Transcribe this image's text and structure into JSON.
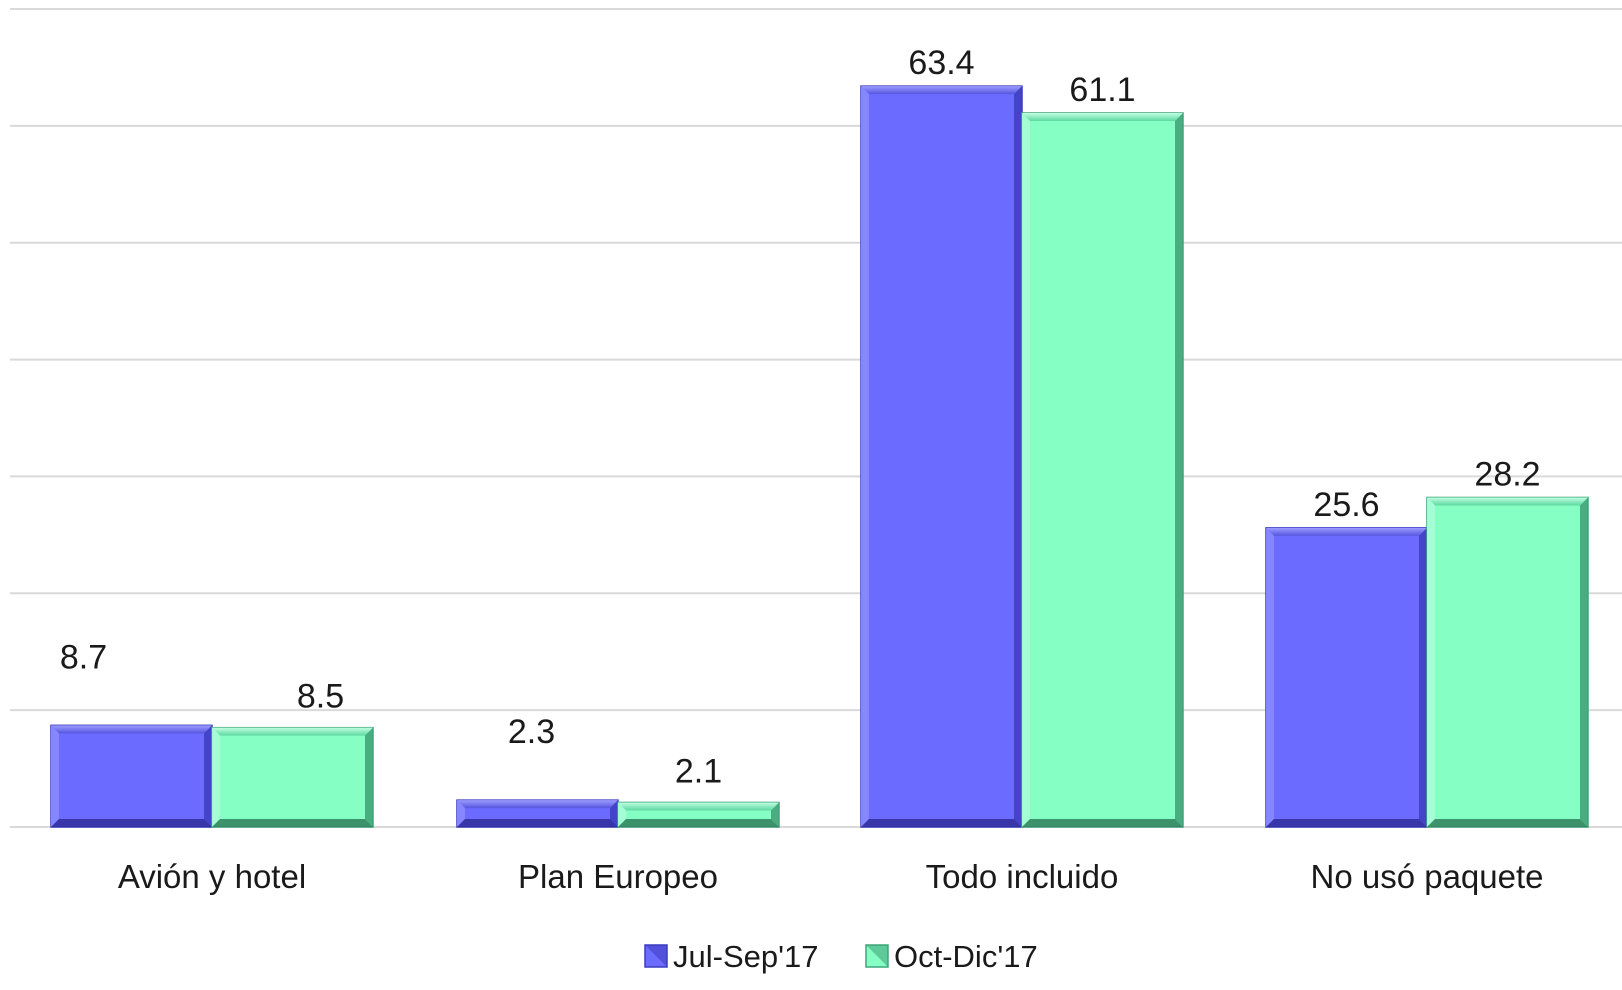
{
  "chart_data": {
    "type": "bar",
    "categories": [
      "Avión y hotel",
      "Plan Europeo",
      "Todo incluido",
      "No usó paquete"
    ],
    "series": [
      {
        "name": "Jul-Sep'17",
        "values": [
          8.7,
          2.3,
          63.4,
          25.6
        ],
        "color": "#6b6bff",
        "edge": "#3c3cc0"
      },
      {
        "name": "Oct-Dic'17",
        "values": [
          8.5,
          2.1,
          61.1,
          28.2
        ],
        "color": "#86ffc4",
        "edge": "#3ea67c"
      }
    ],
    "value_labels": {
      "s0": [
        "8.7",
        "2.3",
        "63.4",
        "25.6"
      ],
      "s1": [
        "8.5",
        "2.1",
        "61.1",
        "28.2"
      ]
    },
    "ylim": [
      0,
      70
    ],
    "grid": true,
    "legend": "bottom-center",
    "title": "",
    "xlabel": "",
    "ylabel": ""
  }
}
